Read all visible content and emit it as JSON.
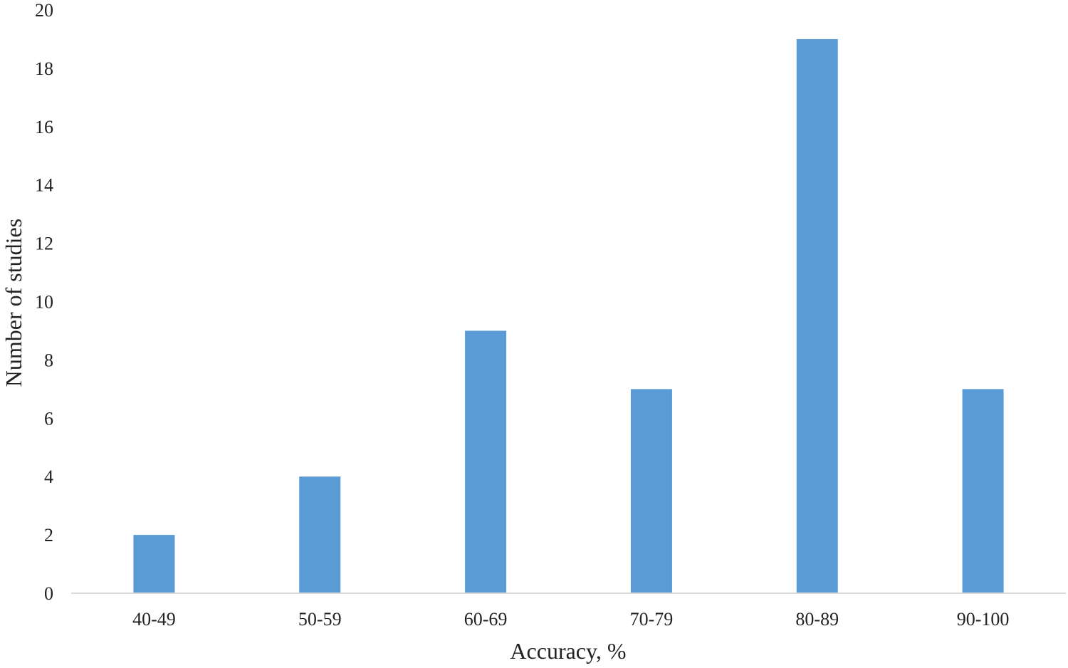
{
  "chart_data": {
    "type": "bar",
    "title": "",
    "xlabel": "Accuracy, %",
    "ylabel": "Number of studies",
    "categories": [
      "40-49",
      "50-59",
      "60-69",
      "70-79",
      "80-89",
      "90-100"
    ],
    "values": [
      2,
      4,
      9,
      7,
      19,
      7
    ],
    "ylim": [
      0,
      20
    ],
    "yticks": [
      0,
      2,
      4,
      6,
      8,
      10,
      12,
      14,
      16,
      18,
      20
    ],
    "grid": false,
    "bar_color": "#5b9bd5",
    "axis_color": "#d9d9d9"
  }
}
